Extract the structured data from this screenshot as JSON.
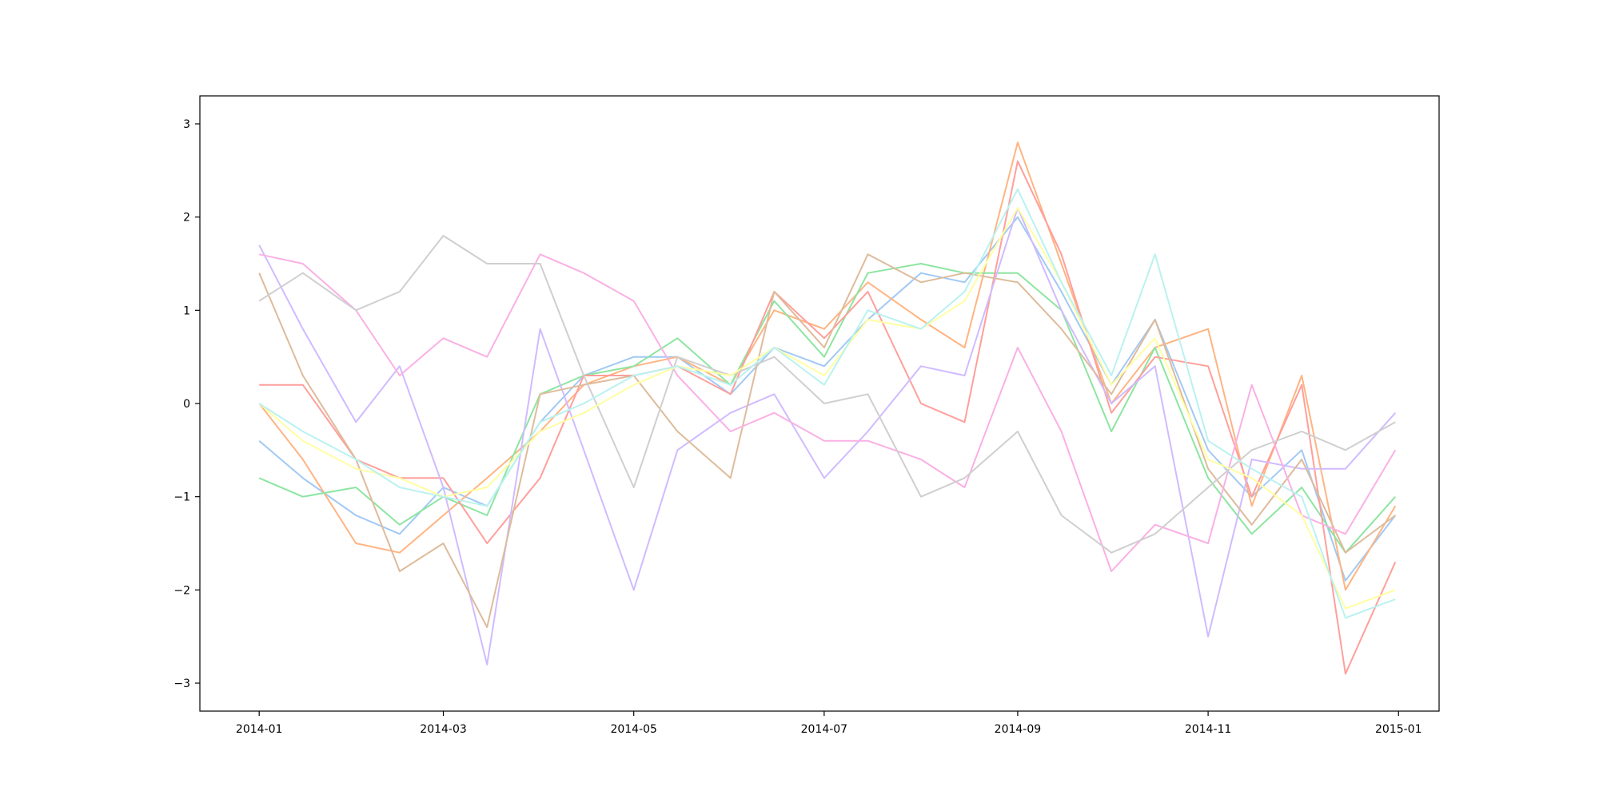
{
  "chart_data": {
    "type": "line",
    "title": "",
    "xlabel": "",
    "ylabel": "",
    "xlim": [
      "2013-12-13",
      "2015-01-14"
    ],
    "ylim": [
      -3.3,
      3.3
    ],
    "x_ticks": [
      "2014-01",
      "2014-03",
      "2014-05",
      "2014-07",
      "2014-09",
      "2014-11",
      "2015-01"
    ],
    "y_ticks": [
      -3,
      -2,
      -1,
      0,
      1,
      2,
      3
    ],
    "grid": false,
    "legend": "none",
    "series": [
      {
        "color": "#a1c9f4",
        "points": [
          [
            "2014-01-01",
            -0.4
          ],
          [
            "2014-01-15",
            -0.8
          ],
          [
            "2014-02-01",
            -1.2
          ],
          [
            "2014-02-15",
            -1.4
          ],
          [
            "2014-03-01",
            -0.9
          ],
          [
            "2014-03-15",
            -1.1
          ],
          [
            "2014-04-01",
            -0.2
          ],
          [
            "2014-04-15",
            0.3
          ],
          [
            "2014-05-01",
            0.5
          ],
          [
            "2014-05-15",
            0.5
          ],
          [
            "2014-06-01",
            0.1
          ],
          [
            "2014-06-15",
            0.6
          ],
          [
            "2014-07-01",
            0.4
          ],
          [
            "2014-07-15",
            0.9
          ],
          [
            "2014-08-01",
            1.4
          ],
          [
            "2014-08-15",
            1.3
          ],
          [
            "2014-09-01",
            2.0
          ],
          [
            "2014-09-15",
            1.2
          ],
          [
            "2014-10-01",
            0.2
          ],
          [
            "2014-10-15",
            0.9
          ],
          [
            "2014-11-01",
            -0.5
          ],
          [
            "2014-11-15",
            -1.0
          ],
          [
            "2014-12-01",
            -0.5
          ],
          [
            "2014-12-15",
            -1.9
          ],
          [
            "2014-12-31",
            -1.2
          ]
        ]
      },
      {
        "color": "#ffb482",
        "points": [
          [
            "2014-01-01",
            0.0
          ],
          [
            "2014-01-15",
            -0.6
          ],
          [
            "2014-02-01",
            -1.5
          ],
          [
            "2014-02-15",
            -1.6
          ],
          [
            "2014-03-01",
            -1.2
          ],
          [
            "2014-03-15",
            -0.8
          ],
          [
            "2014-04-01",
            -0.3
          ],
          [
            "2014-04-15",
            0.2
          ],
          [
            "2014-05-01",
            0.4
          ],
          [
            "2014-05-15",
            0.5
          ],
          [
            "2014-06-01",
            0.2
          ],
          [
            "2014-06-15",
            1.0
          ],
          [
            "2014-07-01",
            0.8
          ],
          [
            "2014-07-15",
            1.3
          ],
          [
            "2014-08-01",
            0.9
          ],
          [
            "2014-08-15",
            0.6
          ],
          [
            "2014-09-01",
            2.8
          ],
          [
            "2014-09-15",
            1.5
          ],
          [
            "2014-10-01",
            0.0
          ],
          [
            "2014-10-15",
            0.6
          ],
          [
            "2014-11-01",
            0.8
          ],
          [
            "2014-11-15",
            -1.1
          ],
          [
            "2014-12-01",
            0.3
          ],
          [
            "2014-12-15",
            -2.0
          ],
          [
            "2014-12-31",
            -1.1
          ]
        ]
      },
      {
        "color": "#8de5a1",
        "points": [
          [
            "2014-01-01",
            -0.8
          ],
          [
            "2014-01-15",
            -1.0
          ],
          [
            "2014-02-01",
            -0.9
          ],
          [
            "2014-02-15",
            -1.3
          ],
          [
            "2014-03-01",
            -1.0
          ],
          [
            "2014-03-15",
            -1.2
          ],
          [
            "2014-04-01",
            0.1
          ],
          [
            "2014-04-15",
            0.3
          ],
          [
            "2014-05-01",
            0.4
          ],
          [
            "2014-05-15",
            0.7
          ],
          [
            "2014-06-01",
            0.2
          ],
          [
            "2014-06-15",
            1.1
          ],
          [
            "2014-07-01",
            0.5
          ],
          [
            "2014-07-15",
            1.4
          ],
          [
            "2014-08-01",
            1.5
          ],
          [
            "2014-08-15",
            1.4
          ],
          [
            "2014-09-01",
            1.4
          ],
          [
            "2014-09-15",
            1.0
          ],
          [
            "2014-10-01",
            -0.3
          ],
          [
            "2014-10-15",
            0.6
          ],
          [
            "2014-11-01",
            -0.8
          ],
          [
            "2014-11-15",
            -1.4
          ],
          [
            "2014-12-01",
            -0.9
          ],
          [
            "2014-12-15",
            -1.6
          ],
          [
            "2014-12-31",
            -1.0
          ]
        ]
      },
      {
        "color": "#ff9f9b",
        "points": [
          [
            "2014-01-01",
            0.2
          ],
          [
            "2014-01-15",
            0.2
          ],
          [
            "2014-02-01",
            -0.6
          ],
          [
            "2014-02-15",
            -0.8
          ],
          [
            "2014-03-01",
            -0.8
          ],
          [
            "2014-03-15",
            -1.5
          ],
          [
            "2014-04-01",
            -0.8
          ],
          [
            "2014-04-15",
            0.3
          ],
          [
            "2014-05-01",
            0.3
          ],
          [
            "2014-05-15",
            0.4
          ],
          [
            "2014-06-01",
            0.1
          ],
          [
            "2014-06-15",
            1.2
          ],
          [
            "2014-07-01",
            0.7
          ],
          [
            "2014-07-15",
            1.2
          ],
          [
            "2014-08-01",
            0.0
          ],
          [
            "2014-08-15",
            -0.2
          ],
          [
            "2014-09-01",
            2.6
          ],
          [
            "2014-09-15",
            1.6
          ],
          [
            "2014-10-01",
            -0.1
          ],
          [
            "2014-10-15",
            0.5
          ],
          [
            "2014-11-01",
            0.4
          ],
          [
            "2014-11-15",
            -1.0
          ],
          [
            "2014-12-01",
            0.2
          ],
          [
            "2014-12-15",
            -2.9
          ],
          [
            "2014-12-31",
            -1.7
          ]
        ]
      },
      {
        "color": "#d0bbff",
        "points": [
          [
            "2014-01-01",
            1.7
          ],
          [
            "2014-01-15",
            0.8
          ],
          [
            "2014-02-01",
            -0.2
          ],
          [
            "2014-02-15",
            0.4
          ],
          [
            "2014-03-01",
            -0.9
          ],
          [
            "2014-03-15",
            -2.8
          ],
          [
            "2014-04-01",
            0.8
          ],
          [
            "2014-04-15",
            -0.5
          ],
          [
            "2014-05-01",
            -2.0
          ],
          [
            "2014-05-15",
            -0.5
          ],
          [
            "2014-06-01",
            -0.1
          ],
          [
            "2014-06-15",
            0.1
          ],
          [
            "2014-07-01",
            -0.8
          ],
          [
            "2014-07-15",
            -0.3
          ],
          [
            "2014-08-01",
            0.4
          ],
          [
            "2014-08-15",
            0.3
          ],
          [
            "2014-09-01",
            2.1
          ],
          [
            "2014-09-15",
            1.0
          ],
          [
            "2014-10-01",
            0.0
          ],
          [
            "2014-10-15",
            0.4
          ],
          [
            "2014-11-01",
            -2.5
          ],
          [
            "2014-11-15",
            -0.6
          ],
          [
            "2014-12-01",
            -0.7
          ],
          [
            "2014-12-15",
            -0.7
          ],
          [
            "2014-12-31",
            -0.1
          ]
        ]
      },
      {
        "color": "#debb9b",
        "points": [
          [
            "2014-01-01",
            1.4
          ],
          [
            "2014-01-15",
            0.3
          ],
          [
            "2014-02-01",
            -0.6
          ],
          [
            "2014-02-15",
            -1.8
          ],
          [
            "2014-03-01",
            -1.5
          ],
          [
            "2014-03-15",
            -2.4
          ],
          [
            "2014-04-01",
            0.1
          ],
          [
            "2014-04-15",
            0.2
          ],
          [
            "2014-05-01",
            0.3
          ],
          [
            "2014-05-15",
            -0.3
          ],
          [
            "2014-06-01",
            -0.8
          ],
          [
            "2014-06-15",
            1.2
          ],
          [
            "2014-07-01",
            0.6
          ],
          [
            "2014-07-15",
            1.6
          ],
          [
            "2014-08-01",
            1.3
          ],
          [
            "2014-08-15",
            1.4
          ],
          [
            "2014-09-01",
            1.3
          ],
          [
            "2014-09-15",
            0.8
          ],
          [
            "2014-10-01",
            0.1
          ],
          [
            "2014-10-15",
            0.9
          ],
          [
            "2014-11-01",
            -0.7
          ],
          [
            "2014-11-15",
            -1.3
          ],
          [
            "2014-12-01",
            -0.6
          ],
          [
            "2014-12-15",
            -1.6
          ],
          [
            "2014-12-31",
            -1.2
          ]
        ]
      },
      {
        "color": "#fab0e4",
        "points": [
          [
            "2014-01-01",
            1.6
          ],
          [
            "2014-01-15",
            1.5
          ],
          [
            "2014-02-01",
            1.0
          ],
          [
            "2014-02-15",
            0.3
          ],
          [
            "2014-03-01",
            0.7
          ],
          [
            "2014-03-15",
            0.5
          ],
          [
            "2014-04-01",
            1.6
          ],
          [
            "2014-04-15",
            1.4
          ],
          [
            "2014-05-01",
            1.1
          ],
          [
            "2014-05-15",
            0.3
          ],
          [
            "2014-06-01",
            -0.3
          ],
          [
            "2014-06-15",
            -0.1
          ],
          [
            "2014-07-01",
            -0.4
          ],
          [
            "2014-07-15",
            -0.4
          ],
          [
            "2014-08-01",
            -0.6
          ],
          [
            "2014-08-15",
            -0.9
          ],
          [
            "2014-09-01",
            0.6
          ],
          [
            "2014-09-15",
            -0.3
          ],
          [
            "2014-10-01",
            -1.8
          ],
          [
            "2014-10-15",
            -1.3
          ],
          [
            "2014-11-01",
            -1.5
          ],
          [
            "2014-11-15",
            0.2
          ],
          [
            "2014-12-01",
            -1.2
          ],
          [
            "2014-12-15",
            -1.4
          ],
          [
            "2014-12-31",
            -0.5
          ]
        ]
      },
      {
        "color": "#cfcfcf",
        "points": [
          [
            "2014-01-01",
            1.1
          ],
          [
            "2014-01-15",
            1.4
          ],
          [
            "2014-02-01",
            1.0
          ],
          [
            "2014-02-15",
            1.2
          ],
          [
            "2014-03-01",
            1.8
          ],
          [
            "2014-03-15",
            1.5
          ],
          [
            "2014-04-01",
            1.5
          ],
          [
            "2014-04-15",
            0.3
          ],
          [
            "2014-05-01",
            -0.9
          ],
          [
            "2014-05-15",
            0.5
          ],
          [
            "2014-06-01",
            0.3
          ],
          [
            "2014-06-15",
            0.5
          ],
          [
            "2014-07-01",
            0.0
          ],
          [
            "2014-07-15",
            0.1
          ],
          [
            "2014-08-01",
            -1.0
          ],
          [
            "2014-08-15",
            -0.8
          ],
          [
            "2014-09-01",
            -0.3
          ],
          [
            "2014-09-15",
            -1.2
          ],
          [
            "2014-10-01",
            -1.6
          ],
          [
            "2014-10-15",
            -1.4
          ],
          [
            "2014-11-01",
            -0.9
          ],
          [
            "2014-11-15",
            -0.5
          ],
          [
            "2014-12-01",
            -0.3
          ],
          [
            "2014-12-15",
            -0.5
          ],
          [
            "2014-12-31",
            -0.2
          ]
        ]
      },
      {
        "color": "#fffea3",
        "points": [
          [
            "2014-01-01",
            0.0
          ],
          [
            "2014-01-15",
            -0.4
          ],
          [
            "2014-02-01",
            -0.7
          ],
          [
            "2014-02-15",
            -0.8
          ],
          [
            "2014-03-01",
            -1.0
          ],
          [
            "2014-03-15",
            -0.9
          ],
          [
            "2014-04-01",
            -0.3
          ],
          [
            "2014-04-15",
            -0.1
          ],
          [
            "2014-05-01",
            0.2
          ],
          [
            "2014-05-15",
            0.4
          ],
          [
            "2014-06-01",
            0.3
          ],
          [
            "2014-06-15",
            0.6
          ],
          [
            "2014-07-01",
            0.3
          ],
          [
            "2014-07-15",
            0.9
          ],
          [
            "2014-08-01",
            0.8
          ],
          [
            "2014-08-15",
            1.1
          ],
          [
            "2014-09-01",
            2.1
          ],
          [
            "2014-09-15",
            1.3
          ],
          [
            "2014-10-01",
            0.2
          ],
          [
            "2014-10-15",
            0.7
          ],
          [
            "2014-11-01",
            -0.6
          ],
          [
            "2014-11-15",
            -0.8
          ],
          [
            "2014-12-01",
            -1.2
          ],
          [
            "2014-12-15",
            -2.2
          ],
          [
            "2014-12-31",
            -2.0
          ]
        ]
      },
      {
        "color": "#b9f2f0",
        "points": [
          [
            "2014-01-01",
            0.0
          ],
          [
            "2014-01-15",
            -0.3
          ],
          [
            "2014-02-01",
            -0.6
          ],
          [
            "2014-02-15",
            -0.9
          ],
          [
            "2014-03-01",
            -1.0
          ],
          [
            "2014-03-15",
            -1.1
          ],
          [
            "2014-04-01",
            -0.2
          ],
          [
            "2014-04-15",
            0.0
          ],
          [
            "2014-05-01",
            0.3
          ],
          [
            "2014-05-15",
            0.4
          ],
          [
            "2014-06-01",
            0.2
          ],
          [
            "2014-06-15",
            0.6
          ],
          [
            "2014-07-01",
            0.2
          ],
          [
            "2014-07-15",
            1.0
          ],
          [
            "2014-08-01",
            0.8
          ],
          [
            "2014-08-15",
            1.2
          ],
          [
            "2014-09-01",
            2.3
          ],
          [
            "2014-09-15",
            1.3
          ],
          [
            "2014-10-01",
            0.3
          ],
          [
            "2014-10-15",
            1.6
          ],
          [
            "2014-11-01",
            -0.4
          ],
          [
            "2014-11-15",
            -0.7
          ],
          [
            "2014-12-01",
            -1.0
          ],
          [
            "2014-12-15",
            -2.3
          ],
          [
            "2014-12-31",
            -2.1
          ]
        ]
      }
    ]
  }
}
